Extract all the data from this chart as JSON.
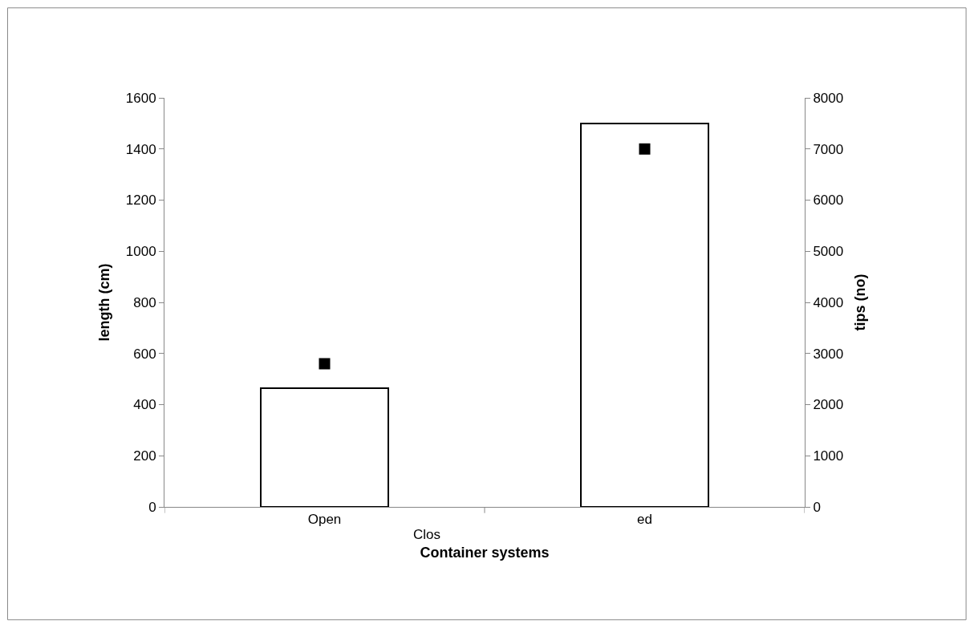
{
  "chart_data": {
    "type": "bar",
    "xlabel": "Container systems",
    "ylabel": "length (cm)",
    "y2label": "tips (no)",
    "categories": [
      "Open",
      "ed"
    ],
    "series": [
      {
        "color": "#ffffff",
        "values": [
          465,
          1500
        ]
      },
      {
        "type": "scatter",
        "axis": "y2",
        "color": "#000000",
        "values": [
          2800,
          7000
        ]
      }
    ],
    "ylim": [
      0,
      1600
    ],
    "yticks": [
      0,
      200,
      400,
      600,
      800,
      1000,
      1200,
      1400,
      1600
    ],
    "y2lim": [
      0,
      8000
    ],
    "y2ticks": [
      0,
      1000,
      2000,
      3000,
      4000,
      5000,
      6000,
      7000,
      8000
    ],
    "marker": "square",
    "grid": false,
    "annotations": [
      "Clos"
    ]
  }
}
